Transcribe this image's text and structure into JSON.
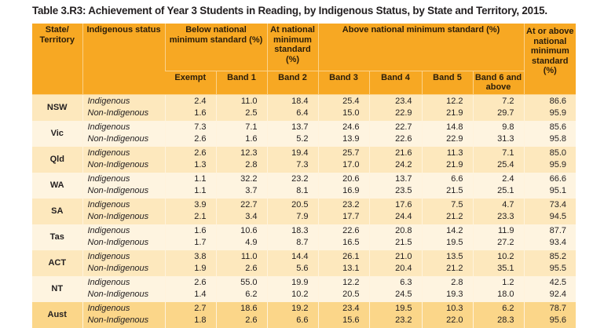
{
  "title": "Table 3.R3: Achievement of Year 3 Students in Reading, by Indigenous Status, by State and Territory, 2015.",
  "headers": {
    "state": "State/ Territory",
    "status": "Indigenous status",
    "below": "Below national minimum standard (%)",
    "at": "At national minimum standard (%)",
    "above": "Above national minimum standard (%)",
    "at_or_above": "At or above national minimum standard (%)",
    "sub": [
      "Exempt",
      "Band 1",
      "Band 2",
      "Band 3",
      "Band 4",
      "Band 5",
      "Band 6 and above"
    ]
  },
  "colors": {
    "header": "#f7a823",
    "row_dark": "#fde8bd",
    "row_light": "#fef4e0",
    "total_row": "#fbd689"
  },
  "rows": [
    {
      "state": "NSW",
      "lines": [
        {
          "status": "Indigenous",
          "values": [
            "2.4",
            "11.0",
            "18.4",
            "25.4",
            "23.4",
            "12.2",
            "7.2",
            "86.6"
          ]
        },
        {
          "status": "Non-Indigenous",
          "values": [
            "1.6",
            "2.5",
            "6.4",
            "15.0",
            "22.9",
            "21.9",
            "29.7",
            "95.9"
          ]
        }
      ]
    },
    {
      "state": "Vic",
      "lines": [
        {
          "status": "Indigenous",
          "values": [
            "7.3",
            "7.1",
            "13.7",
            "24.6",
            "22.7",
            "14.8",
            "9.8",
            "85.6"
          ]
        },
        {
          "status": "Non-Indigenous",
          "values": [
            "2.6",
            "1.6",
            "5.2",
            "13.9",
            "22.6",
            "22.9",
            "31.3",
            "95.8"
          ]
        }
      ]
    },
    {
      "state": "Qld",
      "lines": [
        {
          "status": "Indigenous",
          "values": [
            "2.6",
            "12.3",
            "19.4",
            "25.7",
            "21.6",
            "11.3",
            "7.1",
            "85.0"
          ]
        },
        {
          "status": "Non-Indigenous",
          "values": [
            "1.3",
            "2.8",
            "7.3",
            "17.0",
            "24.2",
            "21.9",
            "25.4",
            "95.9"
          ]
        }
      ]
    },
    {
      "state": "WA",
      "lines": [
        {
          "status": "Indigenous",
          "values": [
            "1.1",
            "32.2",
            "23.2",
            "20.6",
            "13.7",
            "6.6",
            "2.4",
            "66.6"
          ]
        },
        {
          "status": "Non-Indigenous",
          "values": [
            "1.1",
            "3.7",
            "8.1",
            "16.9",
            "23.5",
            "21.5",
            "25.1",
            "95.1"
          ]
        }
      ]
    },
    {
      "state": "SA",
      "lines": [
        {
          "status": "Indigenous",
          "values": [
            "3.9",
            "22.7",
            "20.5",
            "23.2",
            "17.6",
            "7.5",
            "4.7",
            "73.4"
          ]
        },
        {
          "status": "Non-Indigenous",
          "values": [
            "2.1",
            "3.4",
            "7.9",
            "17.7",
            "24.4",
            "21.2",
            "23.3",
            "94.5"
          ]
        }
      ]
    },
    {
      "state": "Tas",
      "lines": [
        {
          "status": "Indigenous",
          "values": [
            "1.6",
            "10.6",
            "18.3",
            "22.6",
            "20.8",
            "14.2",
            "11.9",
            "87.7"
          ]
        },
        {
          "status": "Non-Indigenous",
          "values": [
            "1.7",
            "4.9",
            "8.7",
            "16.5",
            "21.5",
            "19.5",
            "27.2",
            "93.4"
          ]
        }
      ]
    },
    {
      "state": "ACT",
      "lines": [
        {
          "status": "Indigenous",
          "values": [
            "3.8",
            "11.0",
            "14.4",
            "26.1",
            "21.0",
            "13.5",
            "10.2",
            "85.2"
          ]
        },
        {
          "status": "Non-Indigenous",
          "values": [
            "1.9",
            "2.6",
            "5.6",
            "13.1",
            "20.4",
            "21.2",
            "35.1",
            "95.5"
          ]
        }
      ]
    },
    {
      "state": "NT",
      "lines": [
        {
          "status": "Indigenous",
          "values": [
            "2.6",
            "55.0",
            "19.9",
            "12.2",
            "6.3",
            "2.8",
            "1.2",
            "42.5"
          ]
        },
        {
          "status": "Non-Indigenous",
          "values": [
            "1.4",
            "6.2",
            "10.2",
            "20.5",
            "24.5",
            "19.3",
            "18.0",
            "92.4"
          ]
        }
      ]
    },
    {
      "state": "Aust",
      "lines": [
        {
          "status": "Indigenous",
          "values": [
            "2.7",
            "18.6",
            "19.2",
            "23.4",
            "19.5",
            "10.3",
            "6.2",
            "78.7"
          ]
        },
        {
          "status": "Non-Indigenous",
          "values": [
            "1.8",
            "2.6",
            "6.6",
            "15.6",
            "23.2",
            "22.0",
            "28.3",
            "95.6"
          ]
        }
      ]
    }
  ]
}
